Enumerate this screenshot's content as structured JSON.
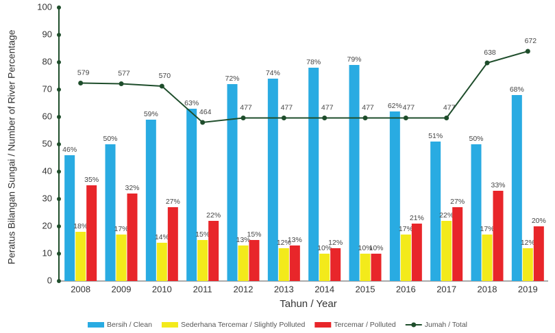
{
  "chart_data": {
    "type": "bar",
    "categories": [
      "2008",
      "2009",
      "2010",
      "2011",
      "2012",
      "2013",
      "2014",
      "2015",
      "2016",
      "2017",
      "2018",
      "2019"
    ],
    "series": [
      {
        "name": "Bersih / Clean",
        "color": "#29abe2",
        "values": [
          46,
          50,
          59,
          63,
          72,
          74,
          78,
          79,
          62,
          51,
          50,
          68
        ],
        "value_labels": [
          "46%",
          "50%",
          "59%",
          "63%",
          "72%",
          "74%",
          "78%",
          "79%",
          "62%",
          "51%",
          "50%",
          "68%"
        ]
      },
      {
        "name": "Sederhana Tercemar / Slightly Polluted",
        "color": "#f3ea1b",
        "values": [
          18,
          17,
          14,
          15,
          13,
          12,
          10,
          10,
          17,
          22,
          17,
          12
        ],
        "value_labels": [
          "18%",
          "17%",
          "14%",
          "15%",
          "13%",
          "12%",
          "10%",
          "10%",
          "17%",
          "22%",
          "17%",
          "12%"
        ]
      },
      {
        "name": "Tercemar / Polluted",
        "color": "#e8262a",
        "values": [
          35,
          32,
          27,
          22,
          15,
          13,
          12,
          10,
          21,
          27,
          33,
          20
        ],
        "value_labels": [
          "35%",
          "32%",
          "27%",
          "22%",
          "15%",
          "13%",
          "12%",
          "10%",
          "21%",
          "27%",
          "33%",
          "20%"
        ]
      },
      {
        "name": "Jumah / Total",
        "color": "#1e4d2b",
        "type": "line",
        "axis": "y2",
        "values": [
          579,
          577,
          570,
          464,
          477,
          477,
          477,
          477,
          477,
          477,
          638,
          672
        ]
      }
    ],
    "ylim": [
      0,
      100
    ],
    "yticks": [
      0,
      10,
      20,
      30,
      40,
      50,
      60,
      70,
      80,
      90,
      100
    ],
    "y2lim": [
      0,
      800
    ],
    "xlabel": "Tahun / Year",
    "ylabel": "Peratus Bilangan Sungai / Number of River Percentage",
    "legend": "bottom"
  }
}
